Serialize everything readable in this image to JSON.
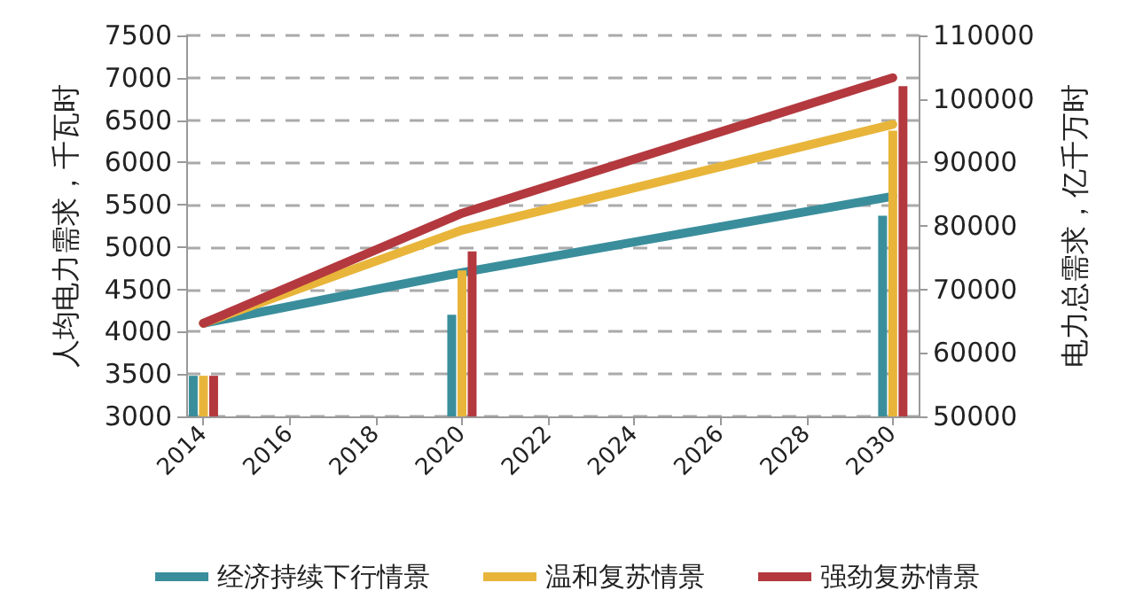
{
  "chart_data": {
    "type": "line",
    "ylabel": "人均电力需求，千瓦时",
    "y2label": "电力总需求，亿千万时",
    "x": [
      2014,
      2020,
      2030
    ],
    "series": [
      {
        "name": "经济持续下行情景",
        "color": "#3a8e9c",
        "values": [
          4100,
          4700,
          5600
        ]
      },
      {
        "name": "温和复苏情景",
        "color": "#e8b53a",
        "values": [
          4100,
          5200,
          6450
        ]
      },
      {
        "name": "强劲复苏情景",
        "color": "#b3393f",
        "values": [
          4100,
          5400,
          7000
        ]
      },
      {
        "type": "bar",
        "axis": "y2",
        "color": "#3a8e9c",
        "values": [
          56400,
          66000,
          81600
        ]
      },
      {
        "type": "bar",
        "axis": "y2",
        "color": "#e8b53a",
        "values": [
          56400,
          73000,
          95000
        ]
      },
      {
        "type": "bar",
        "axis": "y2",
        "color": "#b3393f",
        "values": [
          56400,
          76000,
          102000
        ]
      }
    ],
    "xlim": [
      2013.6,
      2030.6
    ],
    "xticks": [
      2014,
      2016,
      2018,
      2020,
      2022,
      2024,
      2026,
      2028,
      2030
    ],
    "ylim": [
      3000,
      7500
    ],
    "yticks": [
      3000,
      3500,
      4000,
      4500,
      5000,
      5500,
      6000,
      6500,
      7000,
      7500
    ],
    "y2lim": [
      50000,
      110000
    ],
    "y2ticks": [
      50000,
      60000,
      70000,
      80000,
      90000,
      100000,
      110000
    ],
    "grid": "y",
    "legend": "bottom",
    "marker": "none",
    "line_style": "solid"
  }
}
